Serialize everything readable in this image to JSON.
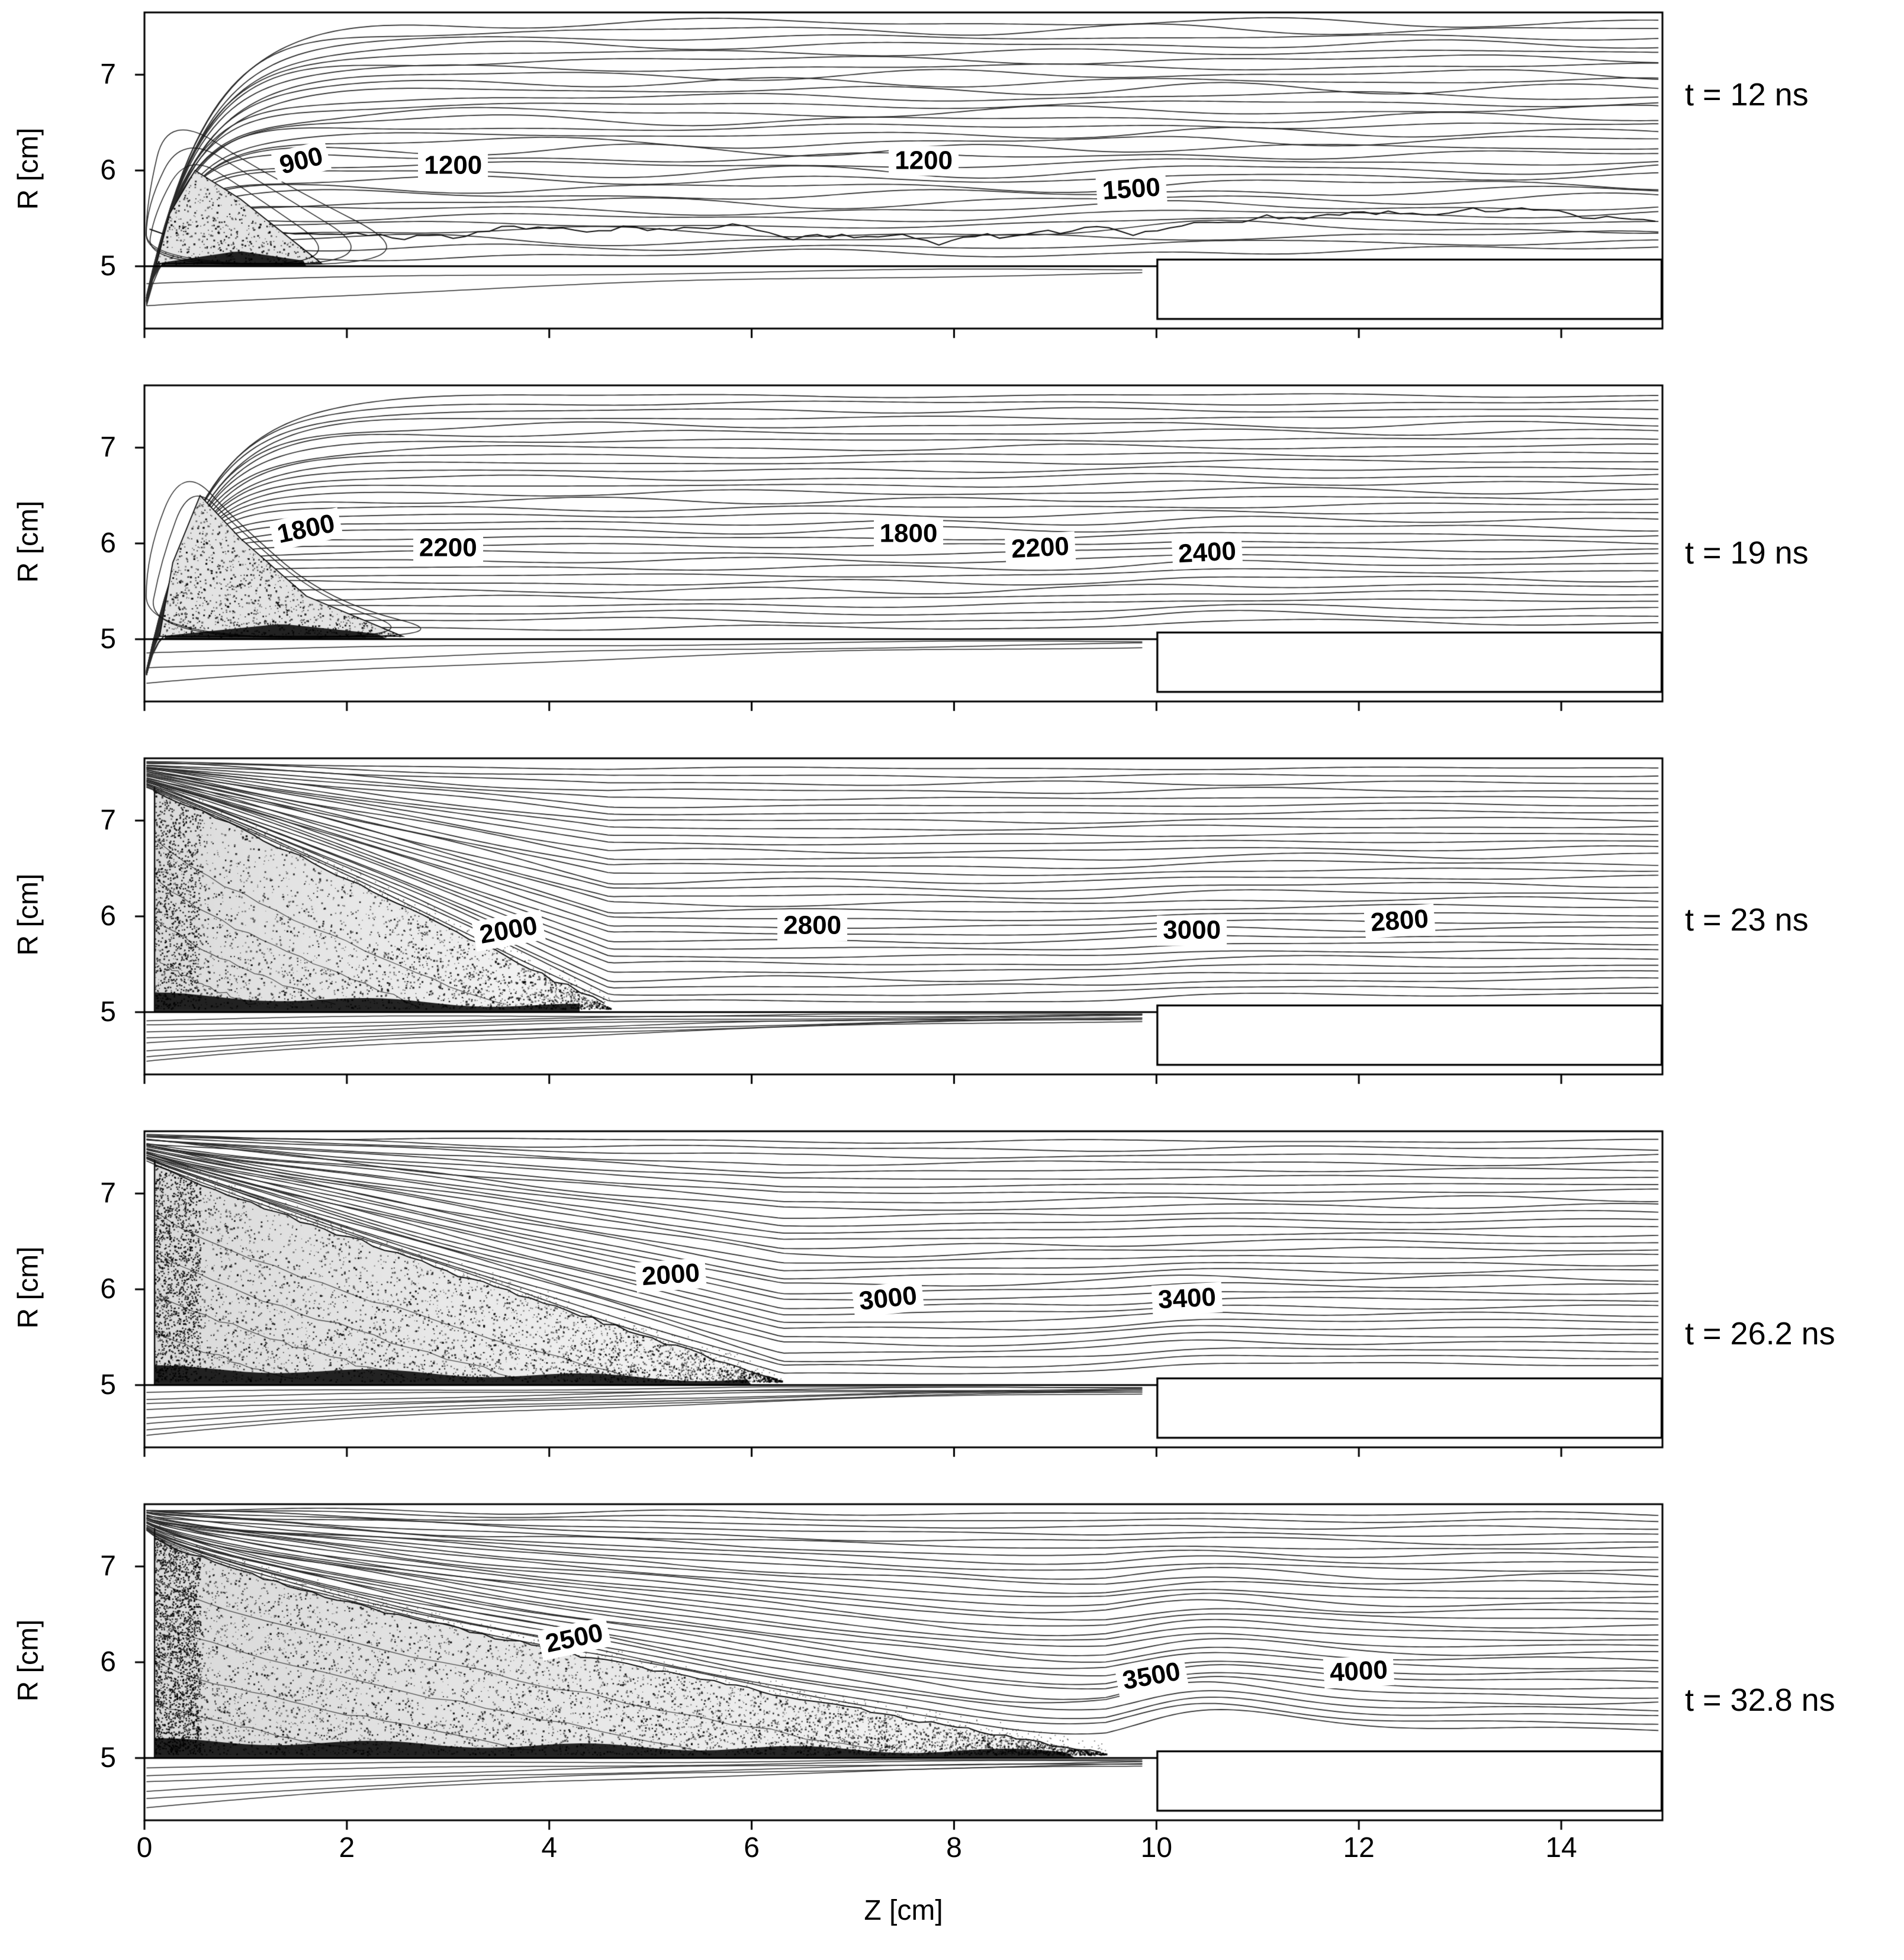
{
  "figure": {
    "xlabel": "Z [cm]",
    "ylabel": "R [cm]",
    "x_tick_labels": [
      "0",
      "2",
      "4",
      "6",
      "8",
      "10",
      "12",
      "14"
    ],
    "y_tick_labels": [
      "7",
      "6",
      "5"
    ]
  },
  "chart_data": {
    "type": "contour",
    "description_type": "contour",
    "x_axis": {
      "label": "Z [cm]",
      "range": [
        0,
        15
      ],
      "ticks": [
        0,
        2,
        4,
        6,
        8,
        10,
        12,
        14
      ]
    },
    "y_axis": {
      "label": "R [cm]",
      "range": [
        4.35,
        7.65
      ],
      "ticks": [
        5,
        6,
        7
      ]
    },
    "geometry": {
      "wall_r": 5.0,
      "step_z": 10.0,
      "step_top_r": 5.07,
      "step_bottom_r": 4.45
    },
    "panels": [
      {
        "time": "t = 12 ns",
        "contour_labels": [
          {
            "text": "900",
            "z": 1.55,
            "r": 6.1,
            "rot": -14
          },
          {
            "text": "1200",
            "z": 3.05,
            "r": 6.05,
            "rot": 0
          },
          {
            "text": "1200",
            "z": 7.7,
            "r": 6.1,
            "rot": 0
          },
          {
            "text": "1500",
            "z": 9.75,
            "r": 5.8,
            "rot": -4
          }
        ],
        "plasma": {
          "shape": "blob",
          "outline": [
            [
              0.12,
              5.03
            ],
            [
              0.25,
              5.55
            ],
            [
              0.5,
              6.0
            ],
            [
              0.95,
              5.7
            ],
            [
              1.75,
              5.03
            ]
          ]
        },
        "mixing_line_r": 5.38
      },
      {
        "time": "t = 19 ns",
        "contour_labels": [
          {
            "text": "1800",
            "z": 1.6,
            "r": 6.15,
            "rot": -12
          },
          {
            "text": "2200",
            "z": 3.0,
            "r": 5.95,
            "rot": 0
          },
          {
            "text": "1800",
            "z": 7.55,
            "r": 6.1,
            "rot": 0
          },
          {
            "text": "2200",
            "z": 8.85,
            "r": 5.95,
            "rot": -3
          },
          {
            "text": "2400",
            "z": 10.5,
            "r": 5.9,
            "rot": -3
          }
        ],
        "plasma": {
          "shape": "plume",
          "outline": [
            [
              0.15,
              5.03
            ],
            [
              0.28,
              5.8
            ],
            [
              0.55,
              6.5
            ],
            [
              0.95,
              6.05
            ],
            [
              1.6,
              5.45
            ],
            [
              2.55,
              5.03
            ]
          ]
        }
      },
      {
        "time": "t = 23 ns",
        "contour_labels": [
          {
            "text": "2000",
            "z": 3.6,
            "r": 5.85,
            "rot": -10
          },
          {
            "text": "2800",
            "z": 6.6,
            "r": 5.9,
            "rot": 0
          },
          {
            "text": "3000",
            "z": 10.35,
            "r": 5.85,
            "rot": 0
          },
          {
            "text": "2800",
            "z": 12.4,
            "r": 5.95,
            "rot": -4
          }
        ],
        "plasma": {
          "shape": "wedge",
          "z_front": 4.6,
          "r_apex": 7.35
        }
      },
      {
        "time": "t = 26.2 ns",
        "contour_labels": [
          {
            "text": "2000",
            "z": 5.2,
            "r": 6.15,
            "rot": -4
          },
          {
            "text": "3000",
            "z": 7.35,
            "r": 5.9,
            "rot": -6
          },
          {
            "text": "3400",
            "z": 10.3,
            "r": 5.9,
            "rot": -3
          }
        ],
        "plasma": {
          "shape": "wedge",
          "z_front": 6.3,
          "r_apex": 7.35
        }
      },
      {
        "time": "t = 32.8 ns",
        "contour_labels": [
          {
            "text": "2500",
            "z": 4.25,
            "r": 6.25,
            "rot": -12
          },
          {
            "text": "3500",
            "z": 9.95,
            "r": 5.85,
            "rot": -10
          },
          {
            "text": "4000",
            "z": 12.0,
            "r": 5.9,
            "rot": -3
          }
        ],
        "plasma": {
          "shape": "wedge",
          "z_front": 9.5,
          "r_apex": 7.4
        }
      }
    ]
  }
}
